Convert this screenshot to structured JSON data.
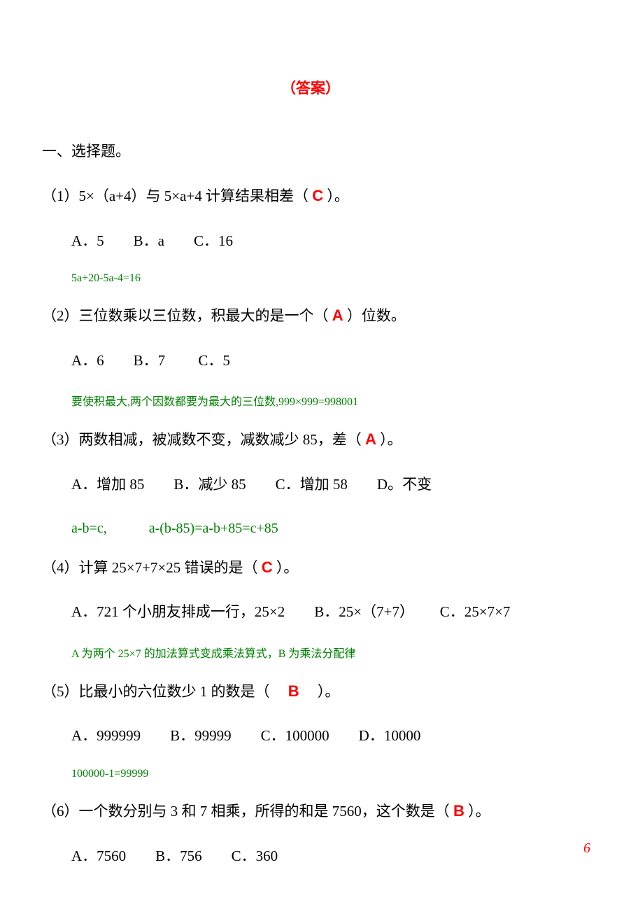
{
  "title": "（答案）",
  "section_heading": "一、选择题。",
  "questions": [
    {
      "num": "（1）",
      "pre": "5×（a+4）与 5×a+4 计算结果相差（ ",
      "answer": "C",
      "post": " ）。",
      "options": "A．5　　B．a　　C．16",
      "explanation": "5a+20-5a-4=16",
      "explanation_class": "explanation"
    },
    {
      "num": "（2）",
      "pre": "三位数乘以三位数，积最大的是一个（  ",
      "answer": "A",
      "post": "  ）位数。",
      "options": "A．6　　B．7　　 C．5",
      "explanation": "要使积最大,两个因数都要为最大的三位数,999×999=998001",
      "explanation_class": "explanation"
    },
    {
      "num": "（3）",
      "pre": "两数相减，被减数不变，减数减少 85，差（  ",
      "answer": "A",
      "post": "  ）。",
      "options": "A．增加 85　　B．减少 85　　C．增加 58　　D。不变",
      "explanation": "a-b=c,　　　a-(b-85)=a-b+85=c+85",
      "explanation_class": "explanation-lg"
    },
    {
      "num": "（4）",
      "pre": "计算 25×7+7×25 错误的是（  ",
      "answer": "C",
      "post": "  ）。",
      "options": "A．721 个小朋友排成一行，25×2　　B．25×（7+7）　　 C．25×7×7",
      "explanation": "A 为两个 25×7 的加法算式变成乘法算式，B 为乘法分配律",
      "explanation_class": "explanation"
    },
    {
      "num": "（5）",
      "pre": "比最小的六位数少 1 的数是（　 ",
      "answer": "B",
      "post": "　 ）。",
      "options": "A．999999　　B．99999　　C．100000　　D．10000",
      "explanation": "100000-1=99999",
      "explanation_class": "explanation"
    },
    {
      "num": "（6）",
      "pre": "一个数分别与 3 和 7 相乘，所得的和是 7560，这个数是（  ",
      "answer": "B",
      "post": "  ）。",
      "options": "A．7560　　B．756　　C．360",
      "explanation": "",
      "explanation_class": ""
    }
  ],
  "page_number": "6",
  "colors": {
    "answer_color": "#ff0000",
    "explanation_color": "#008000",
    "text_color": "#000000",
    "background": "#ffffff",
    "page_number_color": "#ff0000"
  }
}
